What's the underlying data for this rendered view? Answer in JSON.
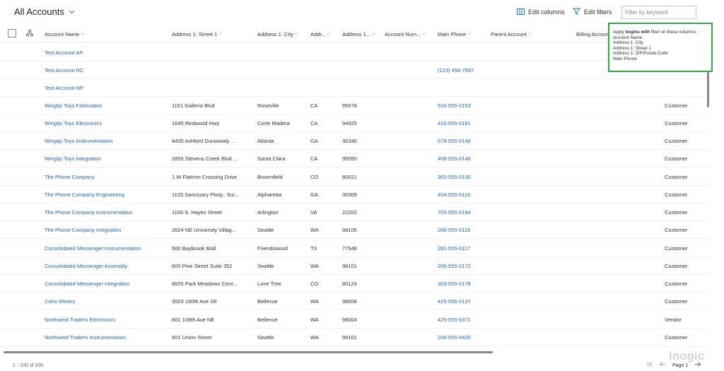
{
  "header": {
    "view_title": "All Accounts",
    "edit_columns": "Edit columns",
    "edit_filters": "Edit filters",
    "filter_placeholder": "Filter by keyword"
  },
  "columns": [
    "Account Name",
    "Address 1: Street 1",
    "Address 1: City",
    "Addr...",
    "Address 1...",
    "Account Num...",
    "Main Phone",
    "Parent Account",
    "Billing Account"
  ],
  "tooltip": {
    "prefix": "Apply ",
    "bold": "begins with",
    "suffix": " filter on these columns:",
    "columns": [
      "Account Name",
      "Address 1: City",
      "Address 1: Street 1",
      "Address 1: ZIP/Postal Code",
      "Main Phone"
    ]
  },
  "rows": [
    {
      "name": "Test Account AP",
      "street": "",
      "city": "",
      "state": "",
      "zip": "",
      "phone": "",
      "type": ""
    },
    {
      "name": "Test Account RC",
      "street": "",
      "city": "",
      "state": "",
      "zip": "",
      "phone": "(123) 456-7897",
      "type": ""
    },
    {
      "name": "Test Account NP",
      "street": "",
      "city": "",
      "state": "",
      "zip": "",
      "phone": "",
      "type": ""
    },
    {
      "name": "Wingtip Toys Fabrication",
      "street": "1151 Galleria Blvd",
      "city": "Roseville",
      "state": "CA",
      "zip": "95678",
      "phone": "916-555-0153",
      "type": "Customer"
    },
    {
      "name": "Wingtip Toys Electronics",
      "street": "1640 Redwood Hwy",
      "city": "Corte Madera",
      "state": "CA",
      "zip": "94925",
      "phone": "415-555-0181",
      "type": "Customer"
    },
    {
      "name": "Wingtip Toys Instrumentation",
      "street": "4400 Ashford Dunwoody ...",
      "city": "Atlanta",
      "state": "GA",
      "zip": "30346",
      "phone": "678-555-0149",
      "type": "Customer"
    },
    {
      "name": "Wingtip Toys Integration",
      "street": "2855 Stevens Creek Blvd ...",
      "city": "Santa Clara",
      "state": "CA",
      "zip": "95050",
      "phone": "408-555-0146",
      "type": "Customer"
    },
    {
      "name": "The Phone Company",
      "street": "1 W FlatIron Crossing Drive",
      "city": "Broomfield",
      "state": "CO",
      "zip": "80021",
      "phone": "303-555-0130",
      "type": "Customer"
    },
    {
      "name": "The Phone Company Engineering",
      "street": "1125 Sanctuary Pkwy.. Sui...",
      "city": "Alpharetta",
      "state": "GA",
      "zip": "30009",
      "phone": "404-555-0116",
      "type": "Customer"
    },
    {
      "name": "The Phone Company Instrumentation",
      "street": "1100 S. Hayes Street",
      "city": "Arlington",
      "state": "VA",
      "zip": "22202",
      "phone": "703-555-0164",
      "type": "Customer"
    },
    {
      "name": "The Phone Company Integration",
      "street": "2624 NE University Villag...",
      "city": "Seattle",
      "state": "WA",
      "zip": "98105",
      "phone": "206-555-0118",
      "type": "Customer"
    },
    {
      "name": "Consolidated Messenger Instrumentation",
      "street": "500 Baybrook Mall",
      "city": "Friendswood",
      "state": "TX",
      "zip": "77546",
      "phone": "281-555-0117",
      "type": "Customer"
    },
    {
      "name": "Consolidated Messenger Assembly",
      "street": "600 Pine Street Suite 352",
      "city": "Seattle",
      "state": "WA",
      "zip": "98101",
      "phone": "206-555-0172",
      "type": "Customer"
    },
    {
      "name": "Consolidated Messenger Integration",
      "street": "8505 Park Meadows Cent...",
      "city": "Lone Tree",
      "state": "CO",
      "zip": "80124",
      "phone": "303-555-0178",
      "type": "Customer"
    },
    {
      "name": "Coho Winery",
      "street": "3003 160th Ave SE",
      "city": "Bellevue",
      "state": "WA",
      "zip": "98008",
      "phone": "425-555-0137",
      "type": "Customer"
    },
    {
      "name": "Northwind Traders Electronics",
      "street": "601 108th Ave NE",
      "city": "Bellevue",
      "state": "WA",
      "zip": "98004",
      "phone": "425-555-5371",
      "type": "Vendor"
    },
    {
      "name": "Northwind Traders Instrumentation",
      "street": "601 Union Street",
      "city": "Seattle",
      "state": "WA",
      "zip": "98101",
      "phone": "206-555-0420",
      "type": "Customer"
    }
  ],
  "footer": {
    "count": "1 - 100 of 100",
    "page": "Page 1"
  },
  "watermark": "inogic"
}
